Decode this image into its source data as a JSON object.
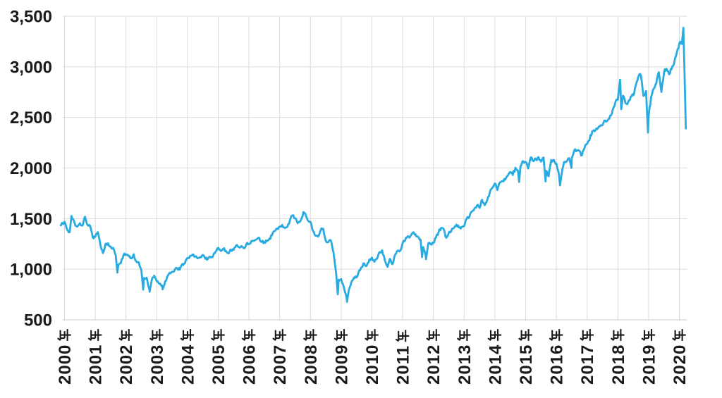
{
  "chart_data": {
    "type": "line",
    "title": "",
    "legend": "none",
    "grid": true,
    "background": "#FFFFFF",
    "line_color": "#29ABE2",
    "grid_color": "#DBDBDB",
    "axis_line_color": "#C9C9C9",
    "label_color": "#1A1A1A",
    "x_axis": {
      "min": 1999.85,
      "max": 2020.25,
      "ticks": [
        2000,
        2001,
        2002,
        2003,
        2004,
        2005,
        2006,
        2007,
        2008,
        2009,
        2010,
        2011,
        2012,
        2013,
        2014,
        2015,
        2016,
        2017,
        2018,
        2019,
        2020
      ],
      "tick_labels": [
        "2000年",
        "2001年",
        "2002年",
        "2003年",
        "2004年",
        "2005年",
        "2006年",
        "2007年",
        "2008年",
        "2009年",
        "2010年",
        "2011年",
        "2012年",
        "2013年",
        "2014年",
        "2015年",
        "2016年",
        "2017年",
        "2018年",
        "2019年",
        "2020年"
      ]
    },
    "y_axis": {
      "min": 500,
      "max": 3500,
      "ticks": [
        500,
        1000,
        1500,
        2000,
        2500,
        3000,
        3500
      ],
      "tick_labels": [
        "500",
        "1,000",
        "1,500",
        "2,000",
        "2,500",
        "3,000",
        "3,500"
      ]
    },
    "series": [
      {
        "points": [
          [
            1999.88,
            1433
          ],
          [
            2000.0,
            1469
          ],
          [
            2000.083,
            1394
          ],
          [
            2000.167,
            1366
          ],
          [
            2000.23,
            1527
          ],
          [
            2000.25,
            1499
          ],
          [
            2000.333,
            1452
          ],
          [
            2000.417,
            1421
          ],
          [
            2000.5,
            1455
          ],
          [
            2000.583,
            1431
          ],
          [
            2000.667,
            1518
          ],
          [
            2000.75,
            1436
          ],
          [
            2000.833,
            1429
          ],
          [
            2000.917,
            1315
          ],
          [
            2001.0,
            1320
          ],
          [
            2001.083,
            1366
          ],
          [
            2001.167,
            1240
          ],
          [
            2001.25,
            1160
          ],
          [
            2001.333,
            1249
          ],
          [
            2001.417,
            1256
          ],
          [
            2001.5,
            1224
          ],
          [
            2001.583,
            1211
          ],
          [
            2001.667,
            1134
          ],
          [
            2001.72,
            966
          ],
          [
            2001.75,
            1041
          ],
          [
            2001.833,
            1060
          ],
          [
            2001.917,
            1139
          ],
          [
            2002.0,
            1148
          ],
          [
            2002.083,
            1130
          ],
          [
            2002.167,
            1107
          ],
          [
            2002.25,
            1147
          ],
          [
            2002.333,
            1077
          ],
          [
            2002.417,
            1067
          ],
          [
            2002.5,
            990
          ],
          [
            2002.56,
            798
          ],
          [
            2002.583,
            912
          ],
          [
            2002.667,
            916
          ],
          [
            2002.75,
            815
          ],
          [
            2002.77,
            777
          ],
          [
            2002.833,
            886
          ],
          [
            2002.917,
            936
          ],
          [
            2003.0,
            880
          ],
          [
            2003.083,
            856
          ],
          [
            2003.167,
            841
          ],
          [
            2003.19,
            801
          ],
          [
            2003.25,
            848
          ],
          [
            2003.333,
            917
          ],
          [
            2003.417,
            964
          ],
          [
            2003.5,
            975
          ],
          [
            2003.583,
            990
          ],
          [
            2003.667,
            1008
          ],
          [
            2003.75,
            996
          ],
          [
            2003.833,
            1051
          ],
          [
            2003.917,
            1058
          ],
          [
            2004.0,
            1112
          ],
          [
            2004.083,
            1131
          ],
          [
            2004.167,
            1145
          ],
          [
            2004.25,
            1126
          ],
          [
            2004.333,
            1107
          ],
          [
            2004.417,
            1121
          ],
          [
            2004.5,
            1141
          ],
          [
            2004.583,
            1102
          ],
          [
            2004.667,
            1104
          ],
          [
            2004.75,
            1115
          ],
          [
            2004.833,
            1130
          ],
          [
            2004.917,
            1174
          ],
          [
            2005.0,
            1212
          ],
          [
            2005.083,
            1181
          ],
          [
            2005.167,
            1204
          ],
          [
            2005.25,
            1181
          ],
          [
            2005.333,
            1157
          ],
          [
            2005.417,
            1192
          ],
          [
            2005.5,
            1191
          ],
          [
            2005.583,
            1234
          ],
          [
            2005.667,
            1220
          ],
          [
            2005.75,
            1229
          ],
          [
            2005.833,
            1207
          ],
          [
            2005.917,
            1249
          ],
          [
            2006.0,
            1248
          ],
          [
            2006.083,
            1280
          ],
          [
            2006.167,
            1281
          ],
          [
            2006.25,
            1295
          ],
          [
            2006.333,
            1311
          ],
          [
            2006.417,
            1270
          ],
          [
            2006.5,
            1270
          ],
          [
            2006.583,
            1277
          ],
          [
            2006.667,
            1304
          ],
          [
            2006.75,
            1336
          ],
          [
            2006.833,
            1378
          ],
          [
            2006.917,
            1401
          ],
          [
            2007.0,
            1418
          ],
          [
            2007.083,
            1438
          ],
          [
            2007.167,
            1407
          ],
          [
            2007.25,
            1421
          ],
          [
            2007.333,
            1482
          ],
          [
            2007.417,
            1531
          ],
          [
            2007.5,
            1503
          ],
          [
            2007.583,
            1455
          ],
          [
            2007.667,
            1474
          ],
          [
            2007.75,
            1527
          ],
          [
            2007.77,
            1565
          ],
          [
            2007.833,
            1549
          ],
          [
            2007.917,
            1481
          ],
          [
            2008.0,
            1468
          ],
          [
            2008.083,
            1379
          ],
          [
            2008.167,
            1331
          ],
          [
            2008.25,
            1323
          ],
          [
            2008.333,
            1386
          ],
          [
            2008.417,
            1400
          ],
          [
            2008.5,
            1280
          ],
          [
            2008.583,
            1267
          ],
          [
            2008.667,
            1283
          ],
          [
            2008.75,
            1166
          ],
          [
            2008.833,
            969
          ],
          [
            2008.89,
            752
          ],
          [
            2008.917,
            896
          ],
          [
            2009.0,
            903
          ],
          [
            2009.083,
            826
          ],
          [
            2009.167,
            735
          ],
          [
            2009.19,
            677
          ],
          [
            2009.25,
            798
          ],
          [
            2009.333,
            873
          ],
          [
            2009.417,
            919
          ],
          [
            2009.5,
            919
          ],
          [
            2009.583,
            987
          ],
          [
            2009.667,
            1021
          ],
          [
            2009.75,
            1057
          ],
          [
            2009.833,
            1036
          ],
          [
            2009.917,
            1096
          ],
          [
            2010.0,
            1115
          ],
          [
            2010.083,
            1074
          ],
          [
            2010.167,
            1104
          ],
          [
            2010.25,
            1169
          ],
          [
            2010.333,
            1187
          ],
          [
            2010.417,
            1089
          ],
          [
            2010.5,
            1031
          ],
          [
            2010.51,
            1023
          ],
          [
            2010.583,
            1102
          ],
          [
            2010.667,
            1049
          ],
          [
            2010.75,
            1141
          ],
          [
            2010.833,
            1183
          ],
          [
            2010.917,
            1181
          ],
          [
            2011.0,
            1258
          ],
          [
            2011.083,
            1286
          ],
          [
            2011.167,
            1327
          ],
          [
            2011.25,
            1326
          ],
          [
            2011.333,
            1364
          ],
          [
            2011.417,
            1345
          ],
          [
            2011.5,
            1321
          ],
          [
            2011.583,
            1292
          ],
          [
            2011.63,
            1120
          ],
          [
            2011.667,
            1219
          ],
          [
            2011.75,
            1131
          ],
          [
            2011.76,
            1099
          ],
          [
            2011.833,
            1253
          ],
          [
            2011.917,
            1247
          ],
          [
            2012.0,
            1258
          ],
          [
            2012.083,
            1312
          ],
          [
            2012.167,
            1366
          ],
          [
            2012.25,
            1408
          ],
          [
            2012.333,
            1398
          ],
          [
            2012.417,
            1310
          ],
          [
            2012.5,
            1362
          ],
          [
            2012.583,
            1379
          ],
          [
            2012.667,
            1407
          ],
          [
            2012.75,
            1441
          ],
          [
            2012.833,
            1412
          ],
          [
            2012.917,
            1416
          ],
          [
            2013.0,
            1426
          ],
          [
            2013.083,
            1498
          ],
          [
            2013.167,
            1515
          ],
          [
            2013.25,
            1569
          ],
          [
            2013.333,
            1598
          ],
          [
            2013.417,
            1631
          ],
          [
            2013.5,
            1606
          ],
          [
            2013.583,
            1686
          ],
          [
            2013.667,
            1633
          ],
          [
            2013.75,
            1682
          ],
          [
            2013.833,
            1757
          ],
          [
            2013.917,
            1806
          ],
          [
            2014.0,
            1848
          ],
          [
            2014.083,
            1783
          ],
          [
            2014.167,
            1859
          ],
          [
            2014.25,
            1872
          ],
          [
            2014.333,
            1884
          ],
          [
            2014.417,
            1924
          ],
          [
            2014.5,
            1960
          ],
          [
            2014.583,
            1931
          ],
          [
            2014.667,
            2003
          ],
          [
            2014.75,
            1972
          ],
          [
            2014.79,
            1862
          ],
          [
            2014.833,
            2018
          ],
          [
            2014.917,
            2068
          ],
          [
            2015.0,
            2059
          ],
          [
            2015.083,
            1995
          ],
          [
            2015.167,
            2105
          ],
          [
            2015.25,
            2068
          ],
          [
            2015.333,
            2086
          ],
          [
            2015.417,
            2107
          ],
          [
            2015.5,
            2063
          ],
          [
            2015.583,
            2104
          ],
          [
            2015.65,
            1868
          ],
          [
            2015.667,
            1972
          ],
          [
            2015.75,
            1920
          ],
          [
            2015.833,
            2079
          ],
          [
            2015.917,
            2080
          ],
          [
            2016.0,
            2044
          ],
          [
            2016.083,
            1940
          ],
          [
            2016.12,
            1829
          ],
          [
            2016.167,
            1932
          ],
          [
            2016.25,
            2060
          ],
          [
            2016.333,
            2065
          ],
          [
            2016.417,
            2097
          ],
          [
            2016.49,
            2001
          ],
          [
            2016.5,
            2099
          ],
          [
            2016.583,
            2174
          ],
          [
            2016.667,
            2171
          ],
          [
            2016.75,
            2168
          ],
          [
            2016.833,
            2126
          ],
          [
            2016.917,
            2199
          ],
          [
            2017.0,
            2239
          ],
          [
            2017.083,
            2279
          ],
          [
            2017.167,
            2364
          ],
          [
            2017.25,
            2363
          ],
          [
            2017.333,
            2384
          ],
          [
            2017.417,
            2412
          ],
          [
            2017.5,
            2423
          ],
          [
            2017.583,
            2470
          ],
          [
            2017.667,
            2472
          ],
          [
            2017.75,
            2519
          ],
          [
            2017.833,
            2575
          ],
          [
            2017.917,
            2648
          ],
          [
            2018.0,
            2674
          ],
          [
            2018.07,
            2873
          ],
          [
            2018.083,
            2824
          ],
          [
            2018.11,
            2581
          ],
          [
            2018.167,
            2714
          ],
          [
            2018.25,
            2641
          ],
          [
            2018.333,
            2648
          ],
          [
            2018.417,
            2705
          ],
          [
            2018.5,
            2718
          ],
          [
            2018.583,
            2816
          ],
          [
            2018.667,
            2902
          ],
          [
            2018.75,
            2914
          ],
          [
            2018.833,
            2712
          ],
          [
            2018.917,
            2760
          ],
          [
            2018.98,
            2351
          ],
          [
            2019.0,
            2507
          ],
          [
            2019.083,
            2704
          ],
          [
            2019.167,
            2784
          ],
          [
            2019.25,
            2834
          ],
          [
            2019.333,
            2946
          ],
          [
            2019.417,
            2752
          ],
          [
            2019.5,
            2942
          ],
          [
            2019.583,
            2980
          ],
          [
            2019.667,
            2926
          ],
          [
            2019.75,
            2977
          ],
          [
            2019.833,
            3038
          ],
          [
            2019.917,
            3141
          ],
          [
            2020.0,
            3231
          ],
          [
            2020.083,
            3226
          ],
          [
            2020.13,
            3386
          ],
          [
            2020.167,
            2954
          ],
          [
            2020.21,
            2391
          ]
        ]
      }
    ]
  }
}
